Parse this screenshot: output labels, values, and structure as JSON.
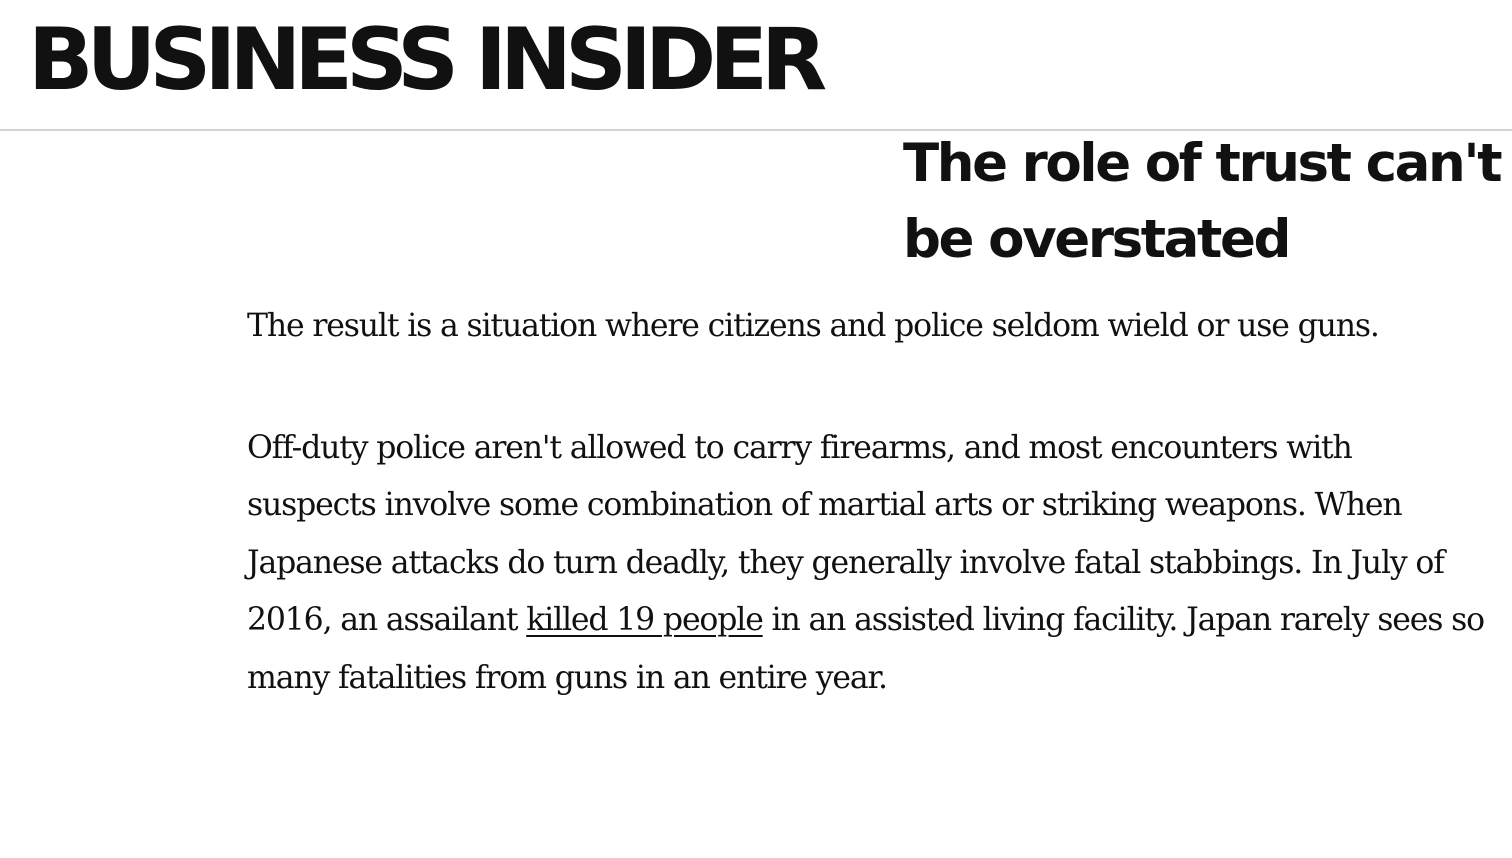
{
  "header": {
    "logo_text": "BUSINESS INSIDER"
  },
  "article": {
    "headline": "The role of trust can't be overstated",
    "paragraph_1": "The result is a situation where citizens and police seldom wield or use guns.",
    "paragraph_2_before_link": "Off-duty police aren't allowed to carry firearms, and most encounters with suspects involve some combination of martial arts or striking weapons. When Japanese attacks do turn deadly, they generally involve fatal stabbings. In July of 2016, an assailant ",
    "paragraph_2_link": "killed 19 people",
    "paragraph_2_after_link": " in an assisted living facility. Japan rarely sees so many fatalities from guns in an entire year."
  },
  "colors": {
    "text": "#111111",
    "background": "#ffffff",
    "header_divider": "#d4d4d4"
  }
}
